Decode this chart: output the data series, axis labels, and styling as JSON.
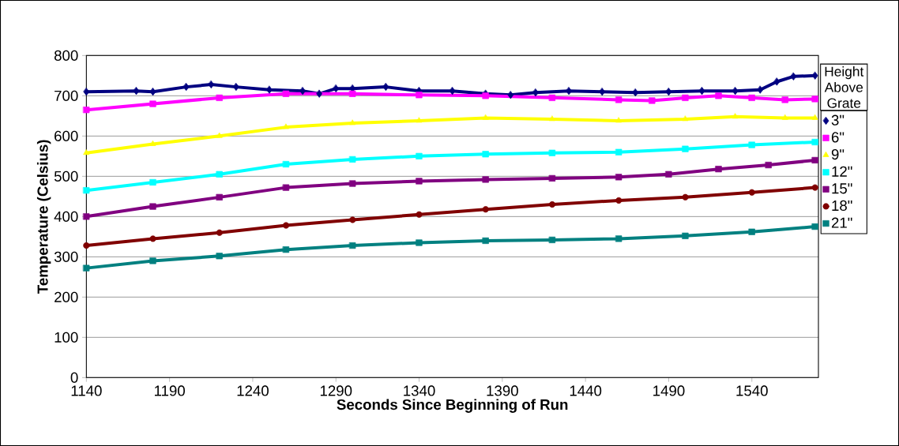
{
  "chart_data": {
    "type": "line",
    "xlabel": "Seconds Since Beginning of Run",
    "ylabel": "Temperature (Celsius)",
    "legend_title": "Height Above Grate",
    "xlim": [
      1140,
      1580
    ],
    "xticks": [
      1140,
      1190,
      1240,
      1290,
      1340,
      1390,
      1440,
      1490,
      1540
    ],
    "ylim": [
      0,
      800
    ],
    "yticks": [
      0,
      100,
      200,
      300,
      400,
      500,
      600,
      700,
      800
    ],
    "grid": "y",
    "legend": "right",
    "line_style": "solid",
    "series": [
      {
        "name": "3\"",
        "color": "#000080",
        "marker": "diamond",
        "x": [
          1140,
          1170,
          1180,
          1200,
          1215,
          1230,
          1250,
          1270,
          1280,
          1290,
          1300,
          1320,
          1340,
          1360,
          1380,
          1395,
          1410,
          1430,
          1450,
          1470,
          1490,
          1510,
          1530,
          1545,
          1555,
          1565,
          1578
        ],
        "values": [
          710,
          712,
          710,
          722,
          728,
          722,
          715,
          712,
          705,
          718,
          718,
          722,
          712,
          712,
          705,
          702,
          708,
          712,
          710,
          708,
          710,
          712,
          712,
          715,
          735,
          748,
          750
        ]
      },
      {
        "name": "6\"",
        "color": "#ff00ff",
        "marker": "square",
        "x": [
          1140,
          1180,
          1220,
          1260,
          1300,
          1340,
          1380,
          1420,
          1460,
          1480,
          1500,
          1520,
          1540,
          1560,
          1578
        ],
        "values": [
          665,
          680,
          695,
          705,
          705,
          702,
          700,
          695,
          690,
          688,
          695,
          700,
          695,
          690,
          692
        ]
      },
      {
        "name": "9\"",
        "color": "#ffff00",
        "marker": "triangle",
        "x": [
          1140,
          1180,
          1220,
          1260,
          1300,
          1340,
          1380,
          1420,
          1460,
          1500,
          1530,
          1560,
          1578
        ],
        "values": [
          558,
          580,
          600,
          622,
          632,
          638,
          645,
          642,
          638,
          642,
          648,
          645,
          645
        ]
      },
      {
        "name": "12\"",
        "color": "#00ffff",
        "marker": "square",
        "x": [
          1140,
          1180,
          1220,
          1260,
          1300,
          1340,
          1380,
          1420,
          1460,
          1500,
          1540,
          1578
        ],
        "values": [
          465,
          485,
          505,
          530,
          542,
          550,
          555,
          558,
          560,
          568,
          578,
          585
        ]
      },
      {
        "name": "15\"",
        "color": "#800080",
        "marker": "square",
        "x": [
          1140,
          1180,
          1220,
          1260,
          1300,
          1340,
          1380,
          1420,
          1460,
          1490,
          1520,
          1550,
          1578
        ],
        "values": [
          400,
          425,
          448,
          472,
          482,
          488,
          492,
          495,
          498,
          505,
          518,
          528,
          540
        ]
      },
      {
        "name": "18\"",
        "color": "#800000",
        "marker": "circle",
        "x": [
          1140,
          1180,
          1220,
          1260,
          1300,
          1340,
          1380,
          1420,
          1460,
          1500,
          1540,
          1578
        ],
        "values": [
          328,
          345,
          360,
          378,
          392,
          405,
          418,
          430,
          440,
          448,
          460,
          472
        ]
      },
      {
        "name": "21\"",
        "color": "#008080",
        "marker": "square",
        "x": [
          1140,
          1180,
          1220,
          1260,
          1300,
          1340,
          1380,
          1420,
          1460,
          1500,
          1540,
          1578
        ],
        "values": [
          272,
          290,
          302,
          318,
          328,
          335,
          340,
          342,
          345,
          352,
          362,
          375
        ]
      }
    ]
  }
}
